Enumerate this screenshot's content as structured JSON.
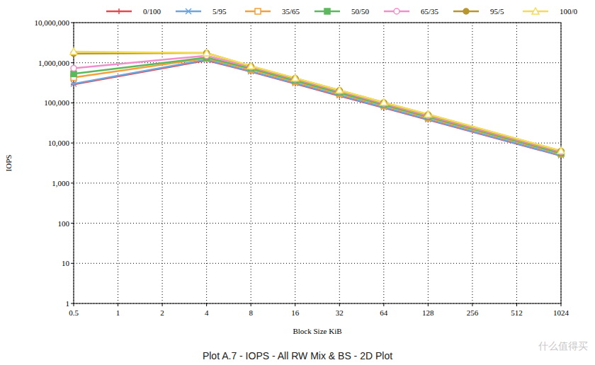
{
  "chart_data": {
    "type": "line",
    "title": "Plot A.7 - IOPS - All RW Mix & BS - 2D Plot",
    "x_label": "Block Size KiB",
    "y_label": "IOPS",
    "annotations": [
      "什么值得买"
    ],
    "log": true,
    "grid": true,
    "legend": "top",
    "x": [
      0.5,
      4,
      8,
      16,
      32,
      64,
      128,
      1024
    ],
    "xlim": [
      0.5,
      1024
    ],
    "xticks": [
      0.5,
      1,
      2,
      4,
      8,
      16,
      32,
      64,
      128,
      256,
      512,
      1024
    ],
    "ylim": [
      1,
      10000000
    ],
    "yticks": [
      1,
      10,
      100,
      {
        "value": 1000,
        "label": "1,000"
      },
      {
        "value": 10000,
        "label": "10,000"
      },
      {
        "value": 100000,
        "label": "100,000"
      },
      {
        "value": 1000000,
        "label": "1,000,000"
      },
      {
        "value": 10000000,
        "label": "10,000,000"
      }
    ],
    "series": [
      {
        "name": "0/100",
        "color": "#e8474c",
        "marker": "plus",
        "values": [
          290000,
          1150000,
          600000,
          300000,
          150000,
          76000,
          38000,
          4800
        ]
      },
      {
        "name": "5/95",
        "color": "#6ea5dc",
        "marker": "cross",
        "values": [
          300000,
          1200000,
          610000,
          310000,
          155000,
          78000,
          39000,
          4900
        ]
      },
      {
        "name": "35/65",
        "color": "#f5a03a",
        "marker": "square-open",
        "values": [
          430000,
          1300000,
          680000,
          340000,
          170000,
          86000,
          43000,
          5400
        ]
      },
      {
        "name": "50/50",
        "color": "#5cb85c",
        "marker": "square",
        "values": [
          530000,
          1350000,
          720000,
          360000,
          180000,
          90000,
          45000,
          5600
        ]
      },
      {
        "name": "65/35",
        "color": "#f08fcb",
        "marker": "circle-open",
        "values": [
          730000,
          1500000,
          780000,
          390000,
          195000,
          97000,
          48000,
          6000
        ]
      },
      {
        "name": "95/5",
        "color": "#b8962e",
        "marker": "circle",
        "values": [
          1700000,
          1750000,
          820000,
          410000,
          205000,
          102000,
          51000,
          6300
        ]
      },
      {
        "name": "100/0",
        "color": "#f2dc5a",
        "marker": "triangle-open",
        "values": [
          1900000,
          1750000,
          830000,
          415000,
          207000,
          103000,
          52000,
          6400
        ]
      }
    ]
  }
}
